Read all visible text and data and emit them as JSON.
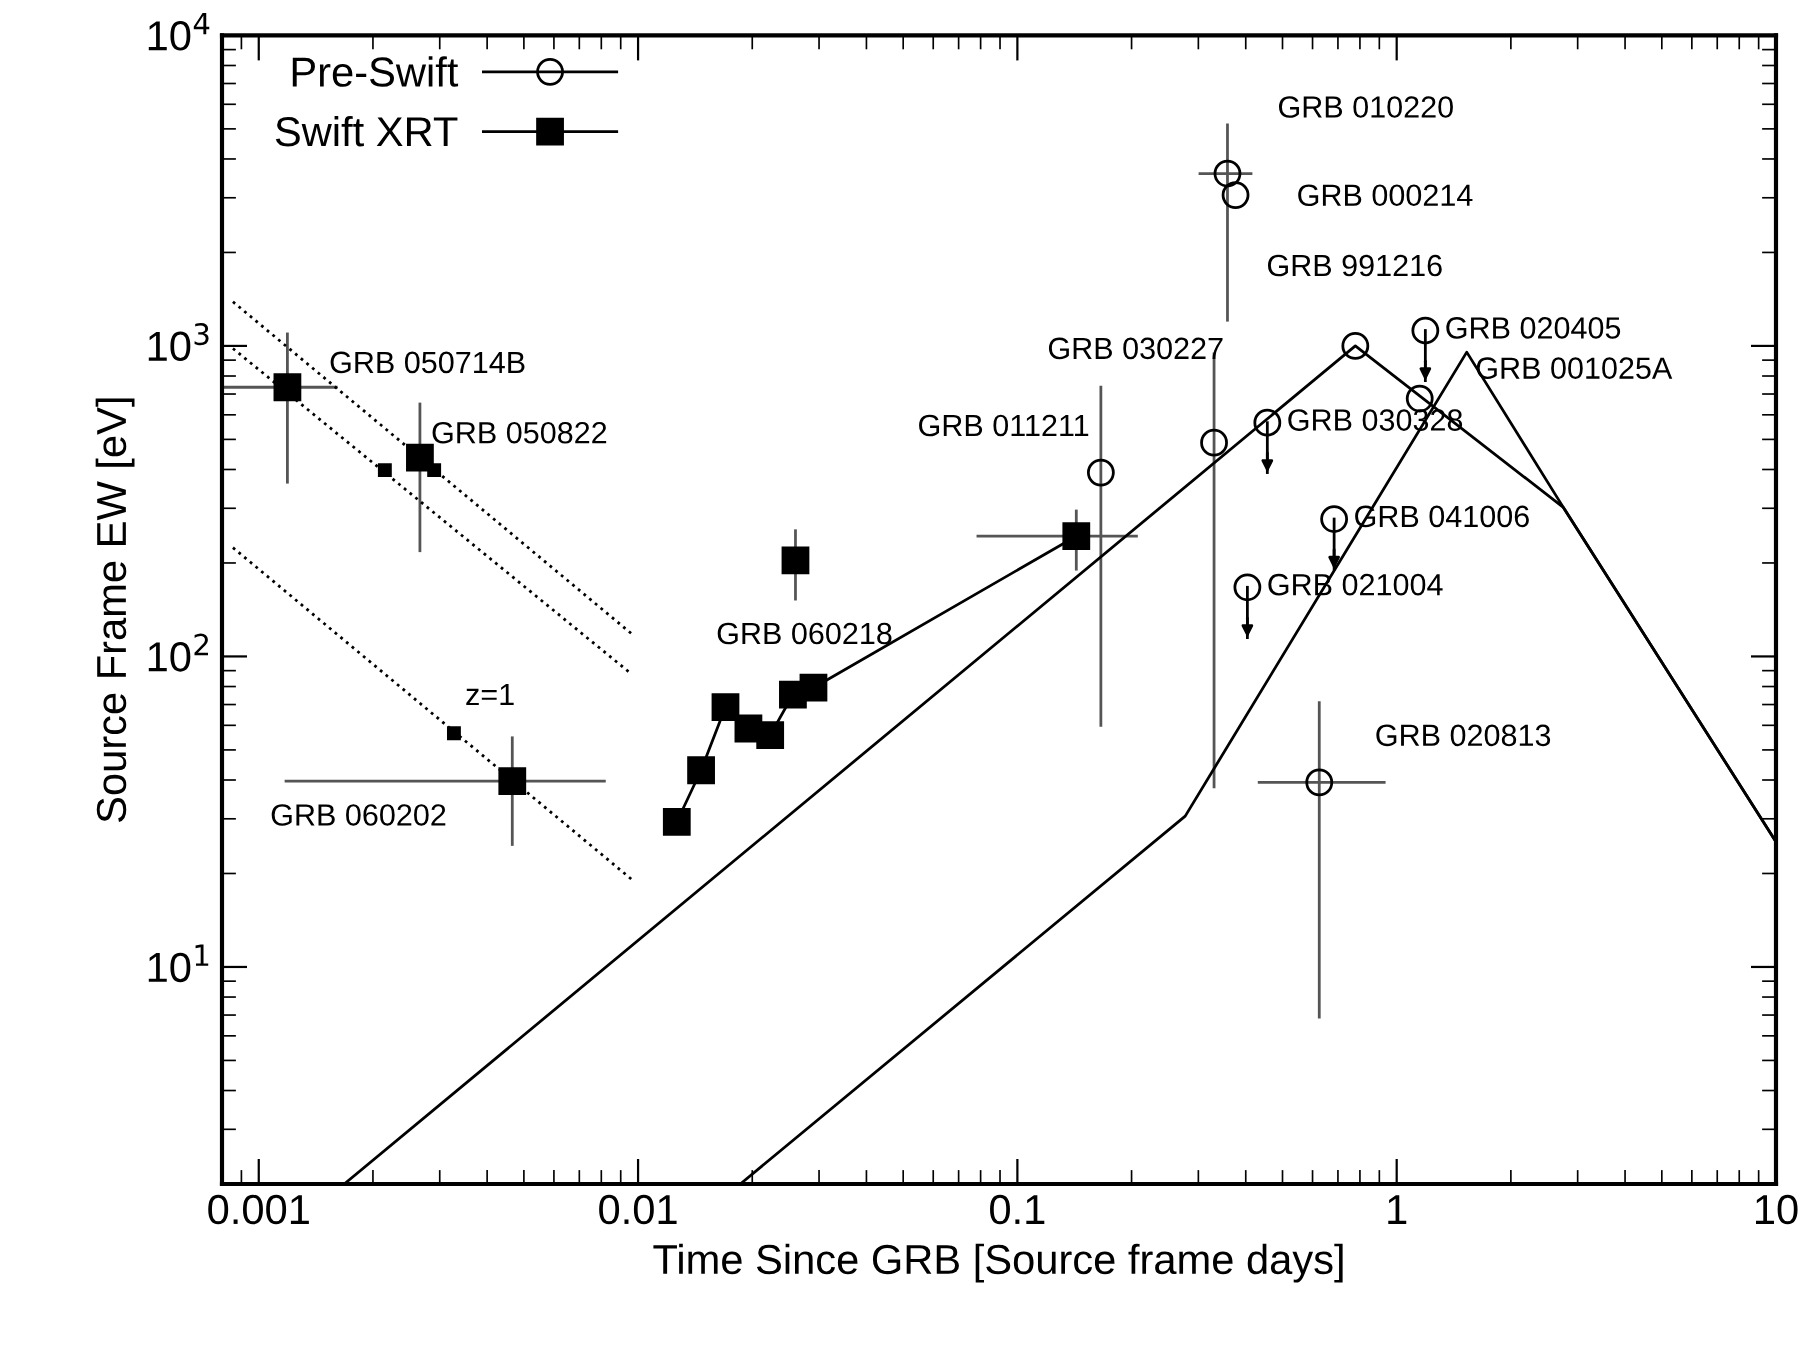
{
  "chart_data": {
    "type": "scatter",
    "xlabel": "Time Since GRB [Source frame days]",
    "ylabel": "Source Frame EW [eV]",
    "log": "xy",
    "grid": false,
    "legend": "top left",
    "xlim": [
      0.0008,
      10
    ],
    "ylim": [
      2,
      10000
    ],
    "xticks": [
      0.001,
      0.01,
      0.1,
      1,
      10
    ],
    "yticks": [
      {
        "value": 10,
        "label": "10$^{1}$"
      },
      {
        "value": 100,
        "label": "10$^{2}$"
      },
      {
        "value": 1000,
        "label": "10$^{3}$"
      },
      {
        "value": 10000,
        "label": "10$^{4}$"
      }
    ],
    "series": [
      {
        "name": "Pre-Swift",
        "marker": "circle",
        "color": "#000000",
        "x": [
          0.358,
          0.376,
          0.166,
          0.33,
          0.456,
          0.404,
          0.684,
          0.778,
          1.19,
          1.15,
          0.625
        ],
        "values": [
          3590,
          3060,
          391,
          488,
          566,
          167,
          277,
          1000,
          1121,
          677,
          39.3
        ],
        "errors": [
          [
            1210,
            5150
          ],
          null,
          [
            60,
            736
          ],
          [
            38,
            942
          ],
          [
            391,
            566
          ],
          [
            115,
            167
          ],
          [
            191,
            277
          ],
          null,
          [
            773,
            1121
          ],
          null,
          [
            6.9,
            71
          ]
        ],
        "xerrors": [
          [
            0.303,
            0.413
          ],
          null,
          null,
          null,
          null,
          null,
          null,
          null,
          null,
          null,
          [
            0.434,
            0.927
          ]
        ]
      },
      {
        "name": "Swift XRT",
        "type": "line",
        "marker": "square",
        "color": "#000000",
        "x": [
          0.01265,
          0.01466,
          0.017,
          0.01954,
          0.0223,
          0.0256,
          0.029,
          0.143
        ],
        "values": [
          29.3,
          43,
          68.7,
          58.6,
          55.8,
          75.3,
          79.3,
          244
        ],
        "errors": [
          null,
          null,
          null,
          null,
          null,
          null,
          null,
          [
            191,
            294
          ]
        ],
        "xerrors": [
          null,
          null,
          null,
          null,
          null,
          null,
          null,
          [
            0.0787,
            0.206
          ]
        ]
      },
      {
        "marker": "square",
        "color": "#000000",
        "x": [
          0.00119,
          0.00266,
          0.00466,
          0.026
        ],
        "values": [
          736,
          437,
          39.7,
          204
        ],
        "errors": [
          [
            364,
            1093
          ],
          [
            219,
            650
          ],
          [
            24.8,
            54.7
          ],
          [
            153,
            254
          ]
        ],
        "xerrors": [
          [
            0.0008,
            0.0016
          ],
          null,
          [
            0.00118,
            0.00815
          ],
          null
        ]
      },
      {
        "marker": "square",
        "color": "#000000",
        "x": [
          0.00215,
          0.0029,
          0.00327
        ],
        "values": [
          398,
          398,
          56.6
        ]
      },
      {
        "type": "line",
        "marker": "none",
        "color": "#000000",
        "x": [
          0.00168,
          0.778,
          2.75,
          10
        ],
        "values": [
          2,
          1000,
          302,
          25.3
        ]
      },
      {
        "type": "line",
        "marker": "none",
        "color": "#000000",
        "x": [
          0.0186,
          0.277,
          1.53,
          2.75,
          10
        ],
        "values": [
          2,
          30.6,
          955,
          302,
          25.3
        ]
      },
      {
        "type": "line",
        "marker": "none",
        "line_style": "dotted",
        "color": "#000000",
        "x": [
          0.000855,
          0.00964
        ],
        "values": [
          1387,
          118
        ]
      },
      {
        "type": "line",
        "marker": "none",
        "line_style": "dotted",
        "color": "#000000",
        "x": [
          0.000855,
          0.00964
        ],
        "values": [
          981,
          87.5
        ]
      },
      {
        "type": "line",
        "marker": "none",
        "line_style": "dotted",
        "color": "#000000",
        "x": [
          0.000855,
          0.00964
        ],
        "values": [
          224,
          19.1
        ]
      }
    ],
    "annotations": [
      {
        "text": "GRB 050714B",
        "x": 0.00119,
        "y": 736
      },
      {
        "text": "GRB 050822",
        "x": 0.00266,
        "y": 437
      },
      {
        "text": "z=1",
        "x": 0.00327,
        "y": 56.6
      },
      "GRB 060202",
      "GRB 060218",
      {
        "text": "GRB 011211",
        "x": 0.166,
        "y": 391
      },
      {
        "text": "GRB 030227",
        "x": 0.33,
        "y": 488
      },
      {
        "text": "GRB 030328",
        "x": 0.456,
        "y": 566
      },
      {
        "text": "GRB 010220",
        "x": 0.358,
        "y": 3590
      },
      {
        "text": "GRB 000214",
        "x": 0.376,
        "y": 3060
      },
      {
        "text": "GRB 991216",
        "x": 0.778,
        "y": 1000
      },
      {
        "text": "GRB 020405",
        "x": 1.19,
        "y": 1121
      },
      {
        "text": "GRB 001025A",
        "x": 1.15,
        "y": 677
      },
      {
        "text": "GRB 041006",
        "x": 0.684,
        "y": 277
      },
      {
        "text": "GRB 021004",
        "x": 0.404,
        "y": 167
      },
      {
        "text": "GRB 020813",
        "x": 0.625,
        "y": 39.3
      }
    ]
  }
}
